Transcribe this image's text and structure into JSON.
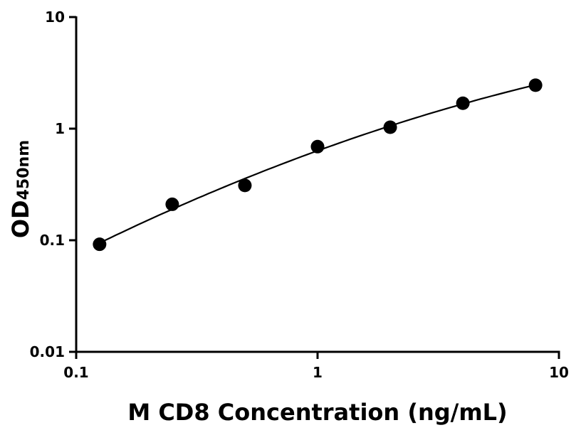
{
  "chart_data": {
    "type": "scatter",
    "title": "",
    "xlabel": "M CD8 Concentration (ng/mL)",
    "ylabel": "OD",
    "ylabel_subscript": "450nm",
    "x_scale": "log",
    "y_scale": "log",
    "xlim": [
      0.1,
      10
    ],
    "ylim": [
      0.01,
      10
    ],
    "x_ticks": [
      "0.1",
      "1",
      "10"
    ],
    "y_ticks": [
      "0.01",
      "0.1",
      "1",
      "10"
    ],
    "grid": false,
    "fit_curve": true,
    "colors": {
      "points": "#000000",
      "curve": "#000000",
      "axes": "#000000"
    },
    "series": [
      {
        "x": [
          0.125,
          0.25,
          0.5,
          1,
          2,
          4,
          8
        ],
        "y": [
          0.092,
          0.21,
          0.31,
          0.69,
          1.03,
          1.69,
          2.45
        ]
      }
    ]
  }
}
